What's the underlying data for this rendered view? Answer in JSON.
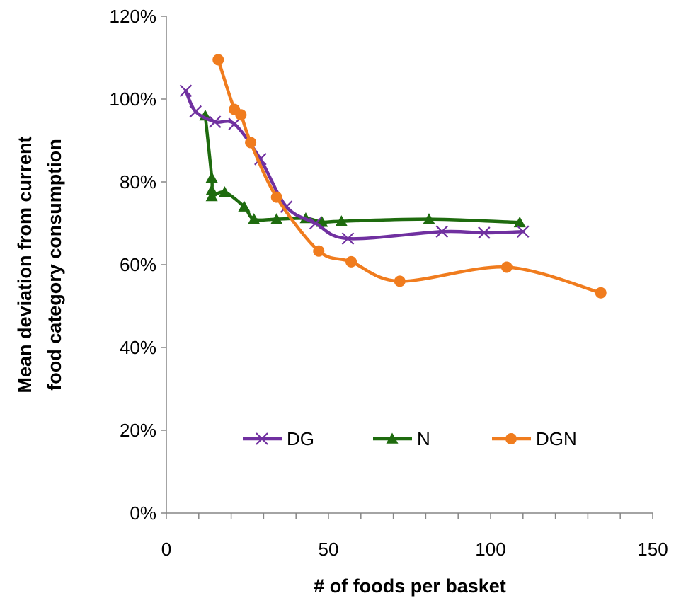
{
  "chart_data": {
    "type": "line",
    "xlabel": "# of foods per basket",
    "ylabel": "Mean deviation from current food category consumption",
    "ylabel_lines": [
      "Mean deviation from current",
      "food category consumption"
    ],
    "xlim": [
      0,
      150
    ],
    "ylim": [
      0,
      1.2
    ],
    "x_ticks": [
      0,
      50,
      100,
      150
    ],
    "x_tick_labels": [
      "0",
      "50",
      "100",
      "150"
    ],
    "y_ticks": [
      0,
      0.2,
      0.4,
      0.6,
      0.8,
      1.0,
      1.2
    ],
    "y_tick_labels": [
      "0%",
      "20%",
      "40%",
      "60%",
      "80%",
      "100%",
      "120%"
    ],
    "grid": false,
    "legend_placement": "bottom-center",
    "series": [
      {
        "name": "DG",
        "color": "#7030A0",
        "marker": "x",
        "x": [
          6,
          9,
          15,
          21,
          29,
          37,
          46,
          56,
          85,
          98,
          110
        ],
        "y": [
          1.02,
          0.97,
          0.945,
          0.94,
          0.855,
          0.74,
          0.7,
          0.663,
          0.68,
          0.677,
          0.68
        ]
      },
      {
        "name": "N",
        "color": "#1E6B0E",
        "marker": "triangle",
        "x": [
          12,
          14,
          14,
          14,
          18,
          24,
          27,
          34,
          43,
          48,
          54,
          81,
          109
        ],
        "y": [
          0.96,
          0.81,
          0.78,
          0.765,
          0.775,
          0.74,
          0.71,
          0.71,
          0.712,
          0.703,
          0.705,
          0.71,
          0.702
        ]
      },
      {
        "name": "DGN",
        "color": "#F07C1E",
        "marker": "circle",
        "x": [
          16,
          21,
          23,
          26,
          34,
          47,
          57,
          72,
          105,
          134
        ],
        "y": [
          1.095,
          0.975,
          0.962,
          0.895,
          0.763,
          0.633,
          0.607,
          0.56,
          0.594,
          0.532
        ]
      }
    ]
  }
}
